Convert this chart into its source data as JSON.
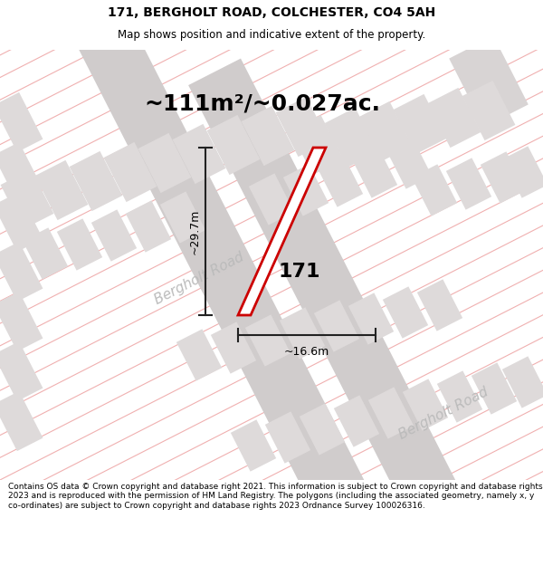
{
  "title_line1": "171, BERGHOLT ROAD, COLCHESTER, CO4 5AH",
  "title_line2": "Map shows position and indicative extent of the property.",
  "area_text": "~111m²/~0.027ac.",
  "label_171": "171",
  "dim_height": "~29.7m",
  "dim_width": "~16.6m",
  "road_label1": "Bergholt Road",
  "road_label2": "Bergholt Road",
  "footer_text": "Contains OS data © Crown copyright and database right 2021. This information is subject to Crown copyright and database rights 2023 and is reproduced with the permission of HM Land Registry. The polygons (including the associated geometry, namely x, y co-ordinates) are subject to Crown copyright and database rights 2023 Ordnance Survey 100026316.",
  "bg_color": "#f2f0f0",
  "road_color": "#d0cccc",
  "plot_line_color": "#cc0000",
  "hatch_line_color": "#f0b0b0",
  "dim_line_color": "#222222",
  "road_label_color": "#bbbbbb",
  "block_color": "#dedada",
  "block_inner_color": "#e8e4e4",
  "white": "#ffffff"
}
